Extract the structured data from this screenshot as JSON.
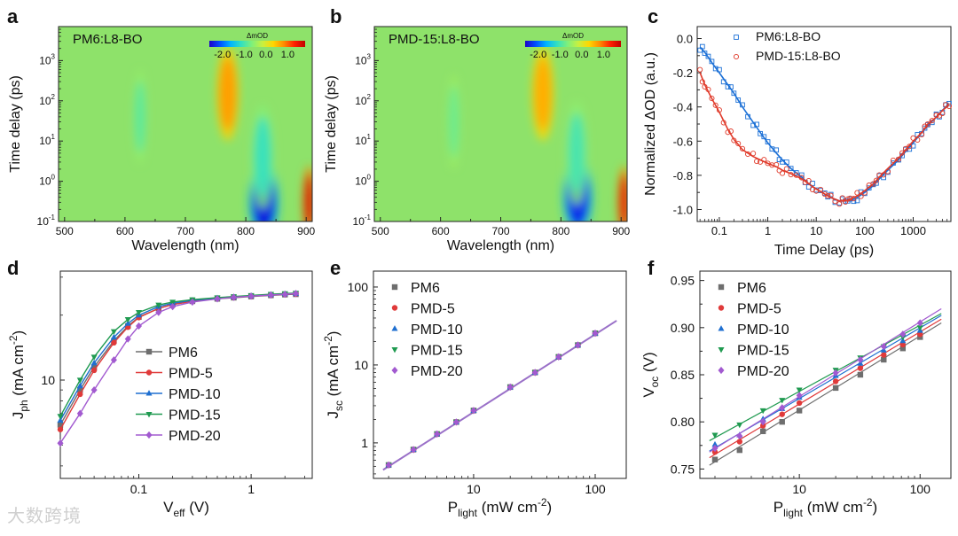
{
  "panel_letters": [
    "a",
    "b",
    "c",
    "d",
    "e",
    "f"
  ],
  "watermark": "大数跨境",
  "chart_data": [
    {
      "panel": "a",
      "type": "heatmap",
      "title": "PM6:L8-BO",
      "xlabel": "Wavelength (nm)",
      "ylabel": "Time delay (ps)",
      "xlim": [
        490,
        910
      ],
      "ylim": [
        0.1,
        7000
      ],
      "yscale": "log",
      "xticks": [
        "500",
        "600",
        "700",
        "800",
        "900"
      ],
      "yticks": [
        {
          "v": 0.1,
          "base": "10",
          "exp": "-1"
        },
        {
          "v": 1,
          "base": "10",
          "exp": "0"
        },
        {
          "v": 10,
          "base": "10",
          "exp": "1"
        },
        {
          "v": 100,
          "base": "10",
          "exp": "2"
        },
        {
          "v": 1000,
          "base": "10",
          "exp": "3"
        }
      ],
      "colorbar": {
        "label": "ΔmOD",
        "ticks": [
          "-2.0",
          "-1.0",
          "0.0",
          "1.0"
        ],
        "range": [
          -2.6,
          1.8
        ],
        "colors": [
          "#1c00c8",
          "#0050ff",
          "#00b4ff",
          "#33e0c0",
          "#7ff07a",
          "#c8f040",
          "#ffd700",
          "#ff8c00",
          "#ff2000",
          "#c00000"
        ]
      },
      "background": "#8ee26a",
      "features": [
        {
          "x": 625,
          "y": 40,
          "dx": 8,
          "dy": 0.9,
          "value": -0.9
        },
        {
          "x": 770,
          "y": 150,
          "dx": 14,
          "dy": 0.9,
          "value": 0.7
        },
        {
          "x": 830,
          "y": 0.3,
          "dx": 20,
          "dy": 0.75,
          "value": -2.4
        },
        {
          "x": 828,
          "y": 4,
          "dx": 14,
          "dy": 1.0,
          "value": -1.1
        },
        {
          "x": 905,
          "y": 0.3,
          "dx": 8,
          "dy": 0.7,
          "value": 1.6
        }
      ]
    },
    {
      "panel": "b",
      "type": "heatmap",
      "title": "PMD-15:L8-BO",
      "xlabel": "Wavelength (nm)",
      "ylabel": "Time delay (ps)",
      "xlim": [
        490,
        910
      ],
      "ylim": [
        0.1,
        7000
      ],
      "yscale": "log",
      "xticks": [
        "500",
        "600",
        "700",
        "800",
        "900"
      ],
      "yticks": [
        {
          "v": 0.1,
          "base": "10",
          "exp": "-1"
        },
        {
          "v": 1,
          "base": "10",
          "exp": "0"
        },
        {
          "v": 10,
          "base": "10",
          "exp": "1"
        },
        {
          "v": 100,
          "base": "10",
          "exp": "2"
        },
        {
          "v": 1000,
          "base": "10",
          "exp": "3"
        }
      ],
      "colorbar": {
        "label": "ΔmOD",
        "ticks": [
          "-2.0",
          "-1.0",
          "0.0",
          "1.0"
        ],
        "range": [
          -2.6,
          1.8
        ],
        "colors": [
          "#1c00c8",
          "#0050ff",
          "#00b4ff",
          "#33e0c0",
          "#7ff07a",
          "#c8f040",
          "#ffd700",
          "#ff8c00",
          "#ff2000",
          "#c00000"
        ]
      },
      "background": "#8ee26a",
      "features": [
        {
          "x": 622,
          "y": 30,
          "dx": 8,
          "dy": 0.9,
          "value": -0.8
        },
        {
          "x": 770,
          "y": 150,
          "dx": 14,
          "dy": 0.9,
          "value": 0.6
        },
        {
          "x": 828,
          "y": 0.4,
          "dx": 20,
          "dy": 0.75,
          "value": -2.3
        },
        {
          "x": 826,
          "y": 5,
          "dx": 14,
          "dy": 1.0,
          "value": -1.0
        },
        {
          "x": 905,
          "y": 0.3,
          "dx": 8,
          "dy": 0.7,
          "value": 1.5
        }
      ]
    },
    {
      "panel": "c",
      "type": "scatter",
      "xlabel": "Time Delay (ps)",
      "ylabel": "Normalized ΔOD (a.u.)",
      "xscale": "log",
      "xlim": [
        0.035,
        6000
      ],
      "ylim": [
        -1.07,
        0.07
      ],
      "xticks": [
        {
          "v": 0.1,
          "label": "0.1"
        },
        {
          "v": 1,
          "label": "1"
        },
        {
          "v": 10,
          "label": "10"
        },
        {
          "v": 100,
          "label": "100"
        },
        {
          "v": 1000,
          "label": "1000"
        }
      ],
      "yticks": [
        "0.0",
        "-0.2",
        "-0.4",
        "-0.6",
        "-0.8",
        "-1.0"
      ],
      "legend_position": "top-right",
      "series": [
        {
          "name": "PM6:L8-BO",
          "color": "#1a6fd6",
          "marker": "square",
          "x": [
            0.04,
            0.05,
            0.07,
            0.1,
            0.15,
            0.2,
            0.3,
            0.5,
            0.7,
            1,
            1.5,
            2,
            3,
            5,
            7,
            10,
            15,
            20,
            30,
            40,
            50,
            70,
            100,
            150,
            200,
            300,
            500,
            700,
            1000,
            1500,
            2000,
            3000,
            4000,
            5500
          ],
          "y": [
            -0.05,
            -0.08,
            -0.14,
            -0.2,
            -0.27,
            -0.32,
            -0.4,
            -0.49,
            -0.55,
            -0.61,
            -0.67,
            -0.71,
            -0.76,
            -0.81,
            -0.85,
            -0.88,
            -0.91,
            -0.93,
            -0.95,
            -0.95,
            -0.95,
            -0.93,
            -0.9,
            -0.86,
            -0.82,
            -0.77,
            -0.71,
            -0.66,
            -0.61,
            -0.55,
            -0.51,
            -0.46,
            -0.42,
            -0.38
          ]
        },
        {
          "name": "PMD-15:L8-BO",
          "color": "#e03a2a",
          "marker": "circle",
          "x": [
            0.04,
            0.05,
            0.07,
            0.1,
            0.15,
            0.2,
            0.3,
            0.5,
            0.7,
            1,
            1.5,
            2,
            3,
            5,
            7,
            10,
            15,
            20,
            30,
            40,
            50,
            70,
            100,
            150,
            200,
            300,
            500,
            700,
            1000,
            1500,
            2000,
            3000,
            4000,
            5500
          ],
          "y": [
            -0.2,
            -0.27,
            -0.35,
            -0.43,
            -0.53,
            -0.59,
            -0.65,
            -0.69,
            -0.71,
            -0.73,
            -0.75,
            -0.77,
            -0.79,
            -0.82,
            -0.85,
            -0.88,
            -0.91,
            -0.93,
            -0.95,
            -0.95,
            -0.94,
            -0.92,
            -0.89,
            -0.85,
            -0.81,
            -0.76,
            -0.7,
            -0.65,
            -0.6,
            -0.55,
            -0.5,
            -0.46,
            -0.42,
            -0.39
          ]
        }
      ]
    },
    {
      "panel": "d",
      "type": "line",
      "xlabel": {
        "main": "V",
        "sub": "eff",
        "tail": " (V)"
      },
      "ylabel": {
        "main": "J",
        "sub": "ph",
        "tail": " (mA cm",
        "sup": "-2",
        "end": ")"
      },
      "xscale": "log",
      "yscale": "log",
      "xlim": [
        0.02,
        3.5
      ],
      "ylim": [
        3.5,
        32
      ],
      "xticks": [
        {
          "v": 0.1,
          "label": "0.1"
        },
        {
          "v": 1,
          "label": "1"
        }
      ],
      "yticks": [
        {
          "v": 10,
          "label": "10"
        }
      ],
      "legend_position": "bottom-right",
      "x": [
        0.02,
        0.03,
        0.04,
        0.06,
        0.08,
        0.1,
        0.15,
        0.2,
        0.3,
        0.5,
        0.7,
        1,
        1.5,
        2,
        2.5
      ],
      "series": [
        {
          "name": "PM6",
          "color": "#6e6e6e",
          "marker": "square",
          "values": [
            6.2,
            9.0,
            11.5,
            15.2,
            17.8,
            19.6,
            21.5,
            22.4,
            23.2,
            23.8,
            24.1,
            24.4,
            24.7,
            24.9,
            25.0
          ]
        },
        {
          "name": "PMD-5",
          "color": "#e03a3a",
          "marker": "circle",
          "values": [
            5.9,
            8.6,
            11.1,
            14.9,
            17.6,
            19.5,
            21.5,
            22.4,
            23.2,
            23.9,
            24.2,
            24.5,
            24.8,
            25.0,
            25.1
          ]
        },
        {
          "name": "PMD-10",
          "color": "#1f6fd0",
          "marker": "triangle-up",
          "values": [
            6.5,
            9.4,
            12.0,
            15.8,
            18.3,
            20.0,
            21.9,
            22.7,
            23.4,
            24.0,
            24.3,
            24.6,
            24.9,
            25.1,
            25.2
          ]
        },
        {
          "name": "PMD-15",
          "color": "#1f9a50",
          "marker": "triangle-down",
          "values": [
            6.8,
            10.0,
            12.8,
            16.8,
            19.1,
            20.6,
            22.3,
            23.0,
            23.6,
            24.1,
            24.4,
            24.7,
            25.0,
            25.2,
            25.3
          ]
        },
        {
          "name": "PMD-20",
          "color": "#a25ad0",
          "marker": "diamond",
          "values": [
            5.1,
            7.0,
            9.0,
            12.4,
            15.5,
            17.8,
            20.6,
            21.9,
            23.0,
            23.8,
            24.2,
            24.5,
            24.8,
            25.0,
            25.2
          ]
        }
      ]
    },
    {
      "panel": "e",
      "type": "scatter",
      "xlabel": {
        "main": "P",
        "sub": "light",
        "tail": " (mW cm",
        "sup": "-2",
        "end": ")"
      },
      "ylabel": {
        "main": "J",
        "sub": "sc",
        "tail": " (mA cm",
        "sup": "-2",
        "end": ")"
      },
      "xscale": "log",
      "yscale": "log",
      "xlim": [
        1.5,
        180
      ],
      "ylim": [
        0.35,
        160
      ],
      "xticks": [
        {
          "v": 10,
          "label": "10"
        },
        {
          "v": 100,
          "label": "100"
        }
      ],
      "yticks": [
        {
          "v": 1,
          "label": "1"
        },
        {
          "v": 10,
          "label": "10"
        },
        {
          "v": 100,
          "label": "100"
        }
      ],
      "legend_position": "top-left",
      "fit": {
        "x": [
          1.8,
          150
        ],
        "y": [
          0.45,
          37
        ],
        "color": "#9a70c8"
      },
      "x": [
        2,
        3.2,
        5,
        7.2,
        10,
        20,
        32,
        50,
        72,
        100
      ],
      "series": [
        {
          "name": "PM6",
          "color": "#6e6e6e",
          "marker": "square",
          "values": [
            0.52,
            0.82,
            1.3,
            1.85,
            2.6,
            5.2,
            8.0,
            12.7,
            18.0,
            25.5
          ]
        },
        {
          "name": "PMD-5",
          "color": "#e03a3a",
          "marker": "circle",
          "values": [
            0.52,
            0.82,
            1.3,
            1.85,
            2.6,
            5.2,
            8.0,
            12.7,
            18.0,
            25.5
          ]
        },
        {
          "name": "PMD-10",
          "color": "#1f6fd0",
          "marker": "triangle-up",
          "values": [
            0.52,
            0.82,
            1.3,
            1.85,
            2.6,
            5.2,
            8.0,
            12.7,
            18.0,
            25.5
          ]
        },
        {
          "name": "PMD-15",
          "color": "#1f9a50",
          "marker": "triangle-down",
          "values": [
            0.52,
            0.82,
            1.3,
            1.85,
            2.6,
            5.2,
            8.0,
            12.7,
            18.0,
            25.5
          ]
        },
        {
          "name": "PMD-20",
          "color": "#a25ad0",
          "marker": "diamond",
          "values": [
            0.52,
            0.82,
            1.3,
            1.85,
            2.6,
            5.2,
            8.0,
            12.7,
            18.0,
            25.5
          ]
        }
      ]
    },
    {
      "panel": "f",
      "type": "scatter",
      "xlabel": {
        "main": "P",
        "sub": "light",
        "tail": " (mW cm",
        "sup": "-2",
        "end": ")"
      },
      "ylabel": {
        "main": "V",
        "sub": "oc",
        "tail": " (V)"
      },
      "xscale": "log",
      "xlim": [
        1.5,
        180
      ],
      "ylim": [
        0.74,
        0.96
      ],
      "xticks": [
        {
          "v": 10,
          "label": "10"
        },
        {
          "v": 100,
          "label": "100"
        }
      ],
      "yticks": [
        {
          "v": 0.75,
          "label": "0.75"
        },
        {
          "v": 0.8,
          "label": "0.80"
        },
        {
          "v": 0.85,
          "label": "0.85"
        },
        {
          "v": 0.9,
          "label": "0.90"
        },
        {
          "v": 0.95,
          "label": "0.95"
        }
      ],
      "legend_position": "top-left",
      "x": [
        2,
        3.2,
        5,
        7.2,
        10,
        20,
        32,
        50,
        72,
        100
      ],
      "series": [
        {
          "name": "PM6",
          "color": "#6e6e6e",
          "marker": "square",
          "values": [
            0.76,
            0.77,
            0.79,
            0.8,
            0.812,
            0.836,
            0.85,
            0.866,
            0.878,
            0.89
          ],
          "fit_y": [
            0.754,
            0.905
          ]
        },
        {
          "name": "PMD-5",
          "color": "#e03a3a",
          "marker": "circle",
          "values": [
            0.768,
            0.779,
            0.796,
            0.808,
            0.82,
            0.843,
            0.857,
            0.871,
            0.882,
            0.893
          ],
          "fit_y": [
            0.762,
            0.909
          ]
        },
        {
          "name": "PMD-10",
          "color": "#1f6fd0",
          "marker": "triangle-up",
          "values": [
            0.776,
            0.786,
            0.803,
            0.814,
            0.826,
            0.849,
            0.862,
            0.876,
            0.886,
            0.897
          ],
          "fit_y": [
            0.769,
            0.913
          ]
        },
        {
          "name": "PMD-15",
          "color": "#1f9a50",
          "marker": "triangle-down",
          "values": [
            0.786,
            0.797,
            0.812,
            0.823,
            0.834,
            0.855,
            0.868,
            0.88,
            0.89,
            0.9
          ],
          "fit_y": [
            0.78,
            0.915
          ]
        },
        {
          "name": "PMD-20",
          "color": "#a25ad0",
          "marker": "diamond",
          "values": [
            0.772,
            0.785,
            0.8,
            0.815,
            0.828,
            0.852,
            0.866,
            0.88,
            0.893,
            0.905
          ],
          "fit_y": [
            0.768,
            0.92
          ]
        }
      ]
    }
  ]
}
